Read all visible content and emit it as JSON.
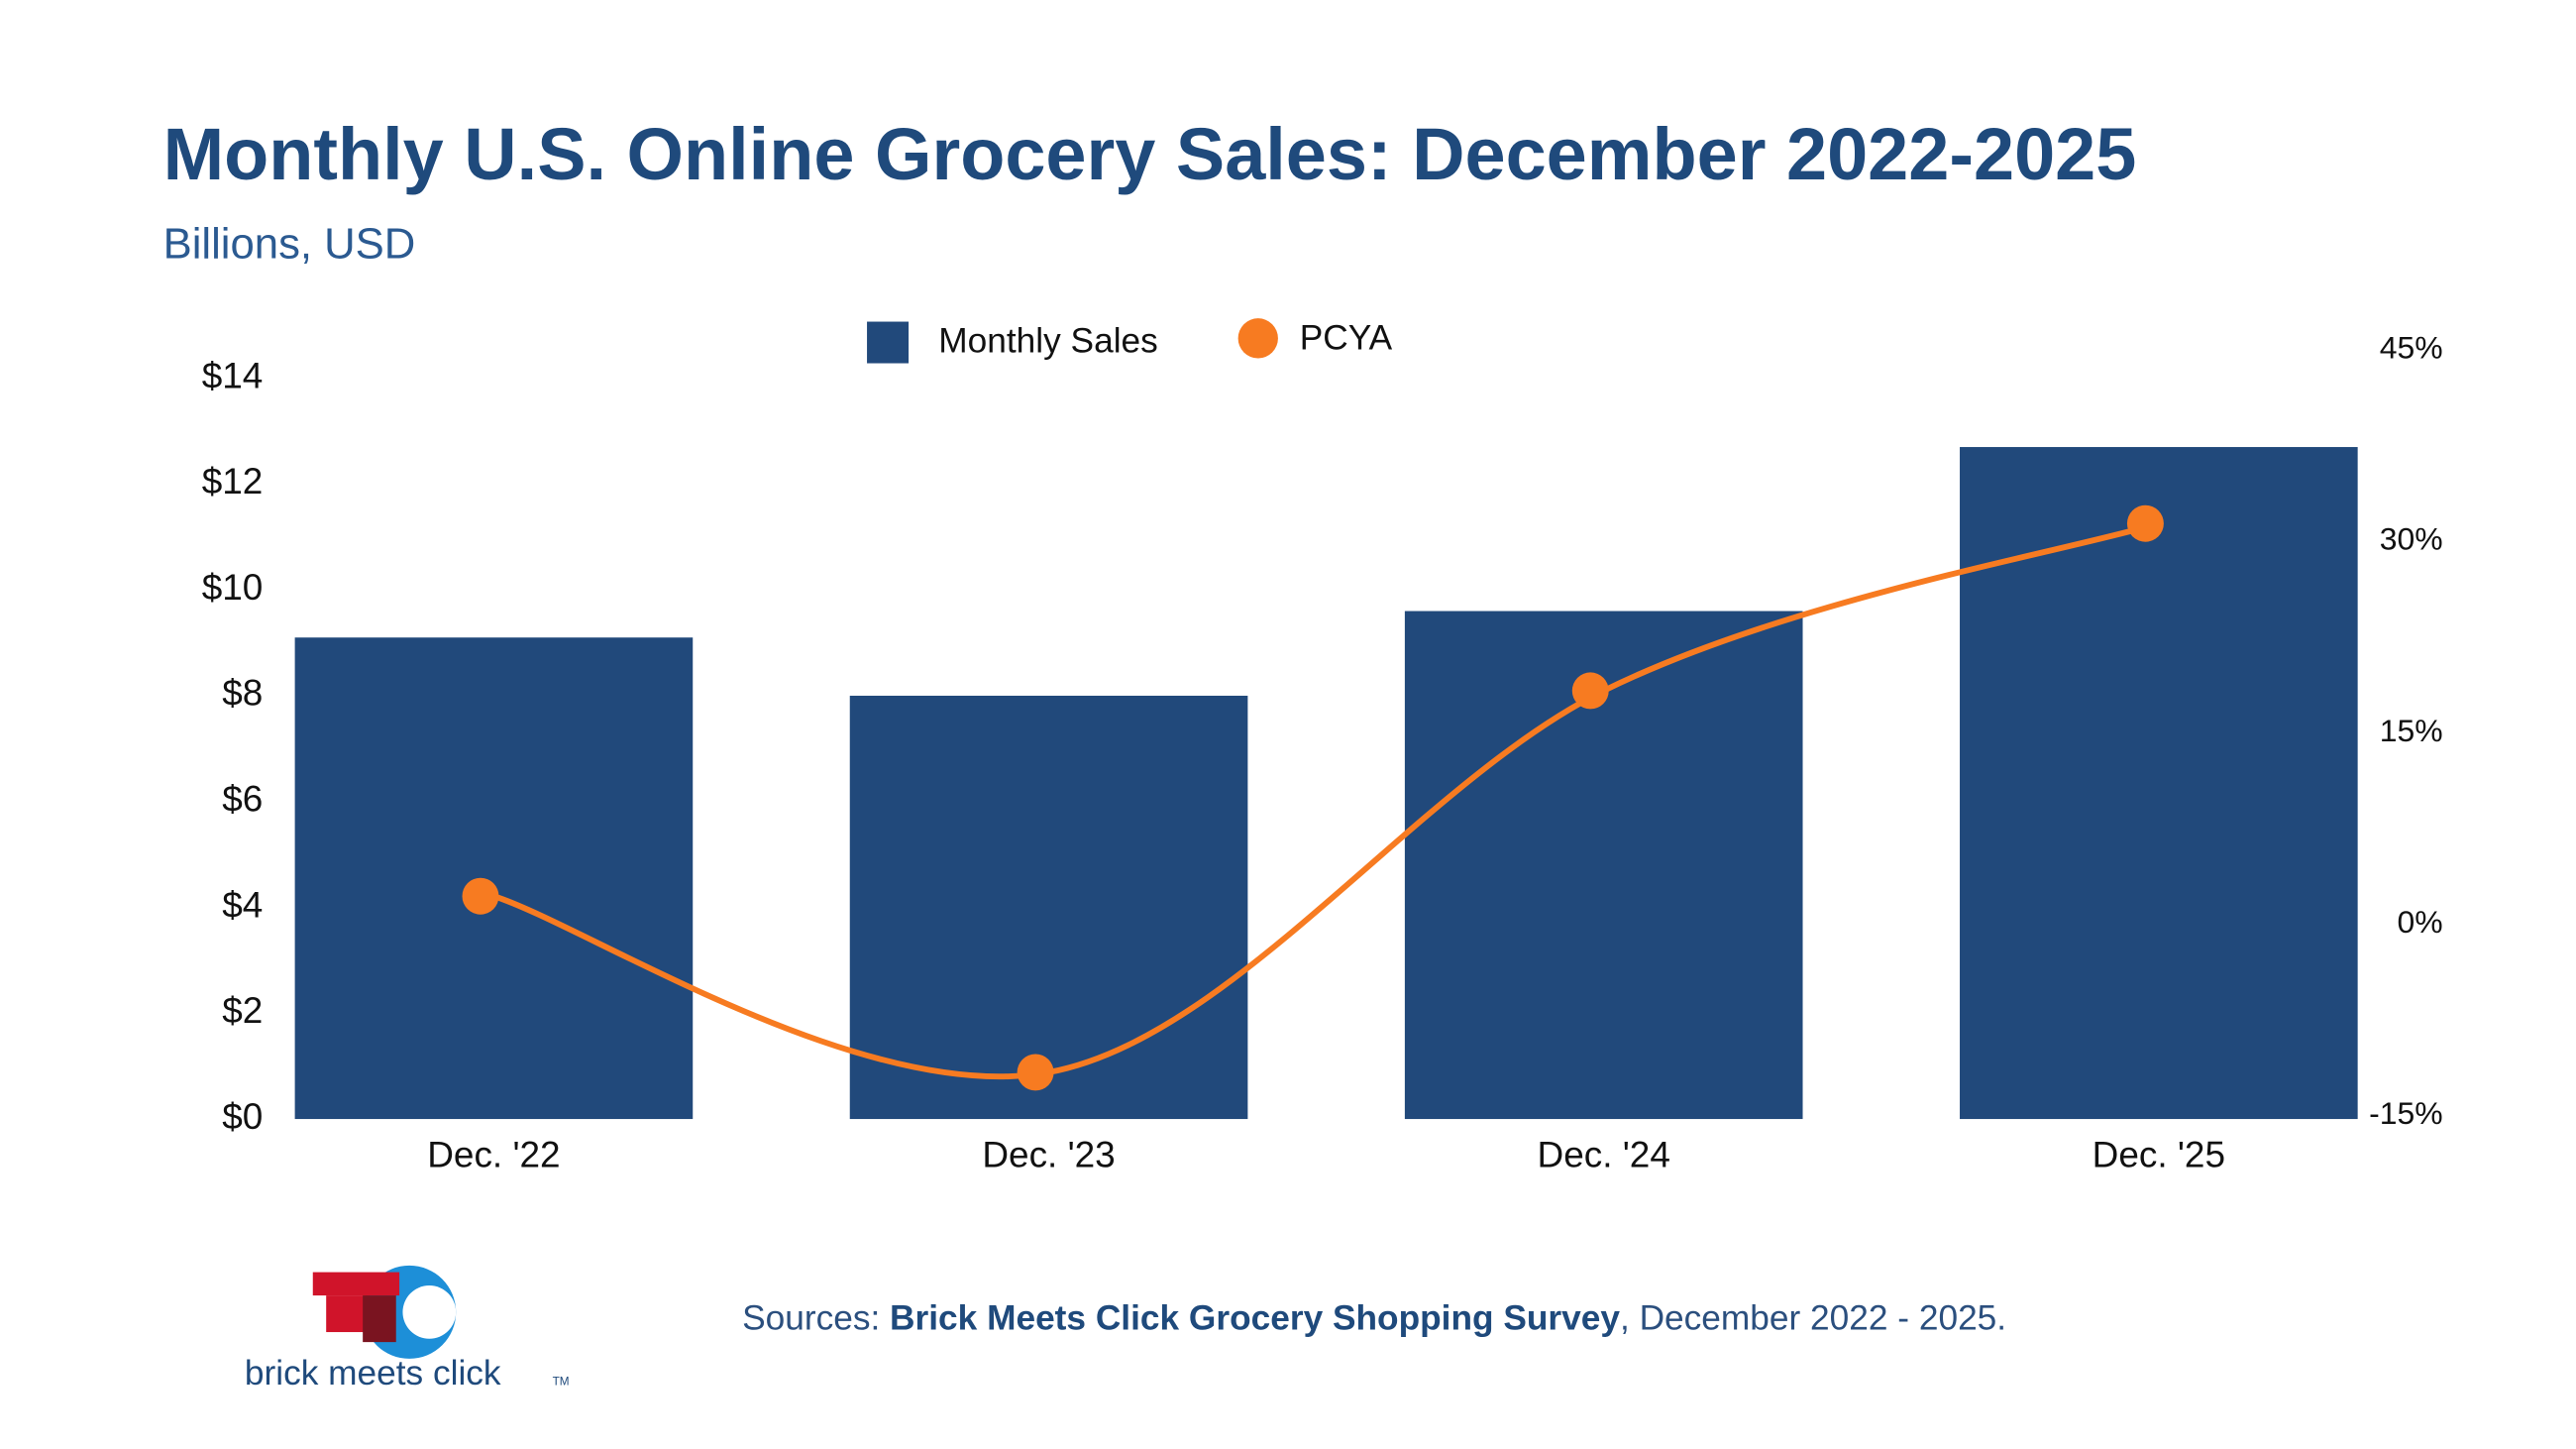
{
  "chart_data": {
    "type": "bar",
    "title": "Monthly U.S. Online Grocery Sales: December 2022-2025",
    "subtitle": "Billions, USD",
    "categories": [
      "Dec. '22",
      "Dec. '23",
      "Dec. '24",
      "Dec. '25"
    ],
    "series": [
      {
        "name": "Monthly Sales",
        "type": "bar",
        "color": "#21497b",
        "values": [
          9.1,
          8.0,
          9.6,
          12.7
        ]
      },
      {
        "name": "PCYA",
        "type": "line",
        "axis": "y2",
        "color": "#f77b21",
        "values": [
          2.2,
          -11.6,
          18.3,
          31.4
        ]
      }
    ],
    "ylim": [
      0,
      14
    ],
    "yticks": [
      {
        "value": 0,
        "label": "$0"
      },
      {
        "value": 2,
        "label": "$2"
      },
      {
        "value": 4,
        "label": "$4"
      },
      {
        "value": 6,
        "label": "$6"
      },
      {
        "value": 8,
        "label": "$8"
      },
      {
        "value": 10,
        "label": "$10"
      },
      {
        "value": 12,
        "label": "$12"
      },
      {
        "value": 14,
        "label": "$14"
      }
    ],
    "y2lim": [
      -15,
      45
    ],
    "y2ticks": [
      {
        "value": -15,
        "label": "-15%"
      },
      {
        "value": 0,
        "label": "0%"
      },
      {
        "value": 15,
        "label": "15%"
      },
      {
        "value": 30,
        "label": "30%"
      },
      {
        "value": 45,
        "label": "45%"
      }
    ],
    "grid": false,
    "legend_position": "top",
    "source": {
      "prefix": "Sources: ",
      "name": "Brick Meets Click Grocery Shopping Survey",
      "suffix": ", December 2022 - 2025."
    },
    "logo": {
      "text": "brick meets click",
      "mark": "TM"
    }
  }
}
